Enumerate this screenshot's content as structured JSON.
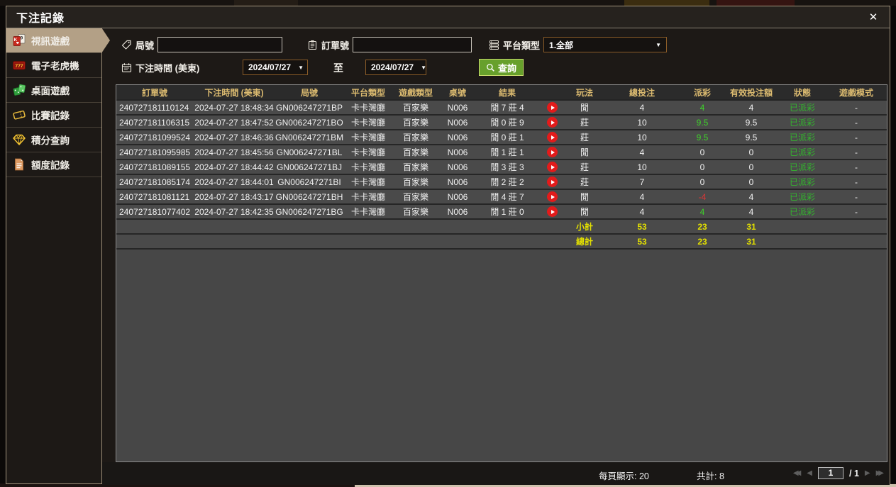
{
  "window": {
    "title": "下注記錄",
    "close_icon": "✕"
  },
  "sidebar": {
    "items": [
      {
        "label": "視訊遊戲",
        "icon": "playing-cards-icon",
        "active": true
      },
      {
        "label": "電子老虎機",
        "icon": "slot-777-icon",
        "active": false
      },
      {
        "label": "桌面遊戲",
        "icon": "table-games-icon",
        "active": false
      },
      {
        "label": "比賽記錄",
        "icon": "ticket-icon",
        "active": false
      },
      {
        "label": "積分查詢",
        "icon": "gem-icon",
        "active": false
      },
      {
        "label": "額度記錄",
        "icon": "document-icon",
        "active": false
      }
    ]
  },
  "filters": {
    "round_label": "局號",
    "order_label": "訂單號",
    "platform_label": "平台類型",
    "platform_selected": "1.全部",
    "dropdown_arrow": "▼",
    "bet_time_label": "下注時間 (美東)",
    "date_from": "2024/07/27",
    "to_label": "至",
    "date_to": "2024/07/27",
    "search_label": "查詢"
  },
  "table": {
    "headers": [
      "訂單號",
      "下注時間 (美東)",
      "局號",
      "平台類型",
      "遊戲類型",
      "桌號",
      "結果",
      "",
      "玩法",
      "總投注",
      "派彩",
      "有效投注額",
      "狀態",
      "遊戲模式"
    ],
    "rows": [
      {
        "order": "240727181110124",
        "time": "2024-07-27 18:48:34",
        "round": "GN006247271BP",
        "platform": "卡卡灣廳",
        "game": "百家樂",
        "table_no": "N006",
        "result": "閒 7 莊 4",
        "bet": "閒",
        "total": "4",
        "payout": "4",
        "payout_color": "green",
        "valid": "4",
        "status": "已派彩",
        "mode": "-"
      },
      {
        "order": "240727181106315",
        "time": "2024-07-27 18:47:52",
        "round": "GN006247271BO",
        "platform": "卡卡灣廳",
        "game": "百家樂",
        "table_no": "N006",
        "result": "閒 0 莊 9",
        "bet": "莊",
        "total": "10",
        "payout": "9.5",
        "payout_color": "green",
        "valid": "9.5",
        "status": "已派彩",
        "mode": "-"
      },
      {
        "order": "240727181099524",
        "time": "2024-07-27 18:46:36",
        "round": "GN006247271BM",
        "platform": "卡卡灣廳",
        "game": "百家樂",
        "table_no": "N006",
        "result": "閒 0 莊 1",
        "bet": "莊",
        "total": "10",
        "payout": "9.5",
        "payout_color": "green",
        "valid": "9.5",
        "status": "已派彩",
        "mode": "-"
      },
      {
        "order": "240727181095985",
        "time": "2024-07-27 18:45:56",
        "round": "GN006247271BL",
        "platform": "卡卡灣廳",
        "game": "百家樂",
        "table_no": "N006",
        "result": "閒 1 莊 1",
        "bet": "閒",
        "total": "4",
        "payout": "0",
        "payout_color": "white",
        "valid": "0",
        "status": "已派彩",
        "mode": "-"
      },
      {
        "order": "240727181089155",
        "time": "2024-07-27 18:44:42",
        "round": "GN006247271BJ",
        "platform": "卡卡灣廳",
        "game": "百家樂",
        "table_no": "N006",
        "result": "閒 3 莊 3",
        "bet": "莊",
        "total": "10",
        "payout": "0",
        "payout_color": "white",
        "valid": "0",
        "status": "已派彩",
        "mode": "-"
      },
      {
        "order": "240727181085174",
        "time": "2024-07-27 18:44:01",
        "round": "GN006247271BI",
        "platform": "卡卡灣廳",
        "game": "百家樂",
        "table_no": "N006",
        "result": "閒 2 莊 2",
        "bet": "莊",
        "total": "7",
        "payout": "0",
        "payout_color": "white",
        "valid": "0",
        "status": "已派彩",
        "mode": "-"
      },
      {
        "order": "240727181081121",
        "time": "2024-07-27 18:43:17",
        "round": "GN006247271BH",
        "platform": "卡卡灣廳",
        "game": "百家樂",
        "table_no": "N006",
        "result": "閒 4 莊 7",
        "bet": "閒",
        "total": "4",
        "payout": "-4",
        "payout_color": "red",
        "valid": "4",
        "status": "已派彩",
        "mode": "-"
      },
      {
        "order": "240727181077402",
        "time": "2024-07-27 18:42:35",
        "round": "GN006247271BG",
        "platform": "卡卡灣廳",
        "game": "百家樂",
        "table_no": "N006",
        "result": "閒 1 莊 0",
        "bet": "閒",
        "total": "4",
        "payout": "4",
        "payout_color": "green",
        "valid": "4",
        "status": "已派彩",
        "mode": "-"
      }
    ],
    "subtotal": {
      "label": "小計",
      "total": "53",
      "payout": "23",
      "valid": "31"
    },
    "grand_total": {
      "label": "總計",
      "total": "53",
      "payout": "23",
      "valid": "31"
    }
  },
  "footer": {
    "per_page": "每頁顯示: 20",
    "total_count": "共計: 8",
    "first_icon": "◀◀",
    "prev_icon": "◀",
    "page_value": "1",
    "page_total": "/  1",
    "next_icon": "▶",
    "last_icon": "▶▶"
  },
  "colors": {
    "accent_tan": "#b3a086",
    "header_gold": "#dcbb70",
    "positive_green": "#3fd42a",
    "status_green": "#33b42e",
    "negative_red": "#e03535",
    "total_yellow": "#e3e000",
    "button_green": "#67a02c",
    "date_border": "#8a5c28",
    "play_red": "#e21b1b"
  }
}
